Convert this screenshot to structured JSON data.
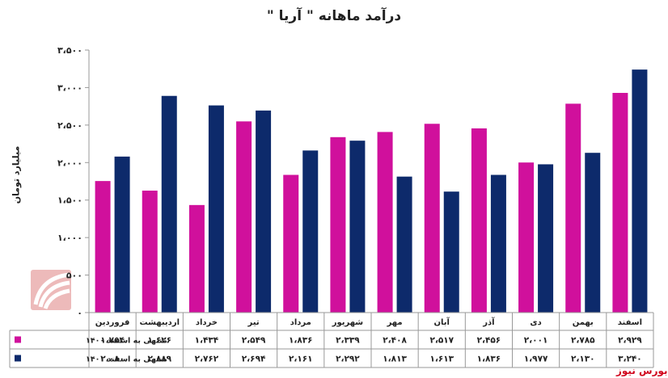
{
  "chart_data": {
    "type": "bar",
    "title": "درآمد ماهانه \" آریا \"",
    "ylabel": "میلیارد تومان",
    "ylim": [
      0,
      3500
    ],
    "yticks": [
      "۰",
      "۵۰۰",
      "۱،۰۰۰",
      "۱،۵۰۰",
      "۲،۰۰۰",
      "۲،۵۰۰",
      "۳،۰۰۰",
      "۳،۵۰۰"
    ],
    "yticks_values": [
      0,
      500,
      1000,
      1500,
      2000,
      2500,
      3000,
      3500
    ],
    "categories": [
      "فروردین",
      "اردیبهشت",
      "خرداد",
      "تیر",
      "مرداد",
      "شهریور",
      "مهر",
      "آبان",
      "آذر",
      "دی",
      "بهمن",
      "اسفند"
    ],
    "series": [
      {
        "name": "منتهی به اسفند ۱۴۰۰",
        "color": "#d0109c",
        "values": [
          1754,
          1626,
          1434,
          2549,
          1836,
          2339,
          2408,
          2517,
          2456,
          2001,
          2785,
          2929
        ],
        "labels": [
          "۱،۷۵۴",
          "۱،۶۲۶",
          "۱،۴۳۴",
          "۲،۵۴۹",
          "۱،۸۳۶",
          "۲،۳۳۹",
          "۲،۴۰۸",
          "۲،۵۱۷",
          "۲،۴۵۶",
          "۲،۰۰۱",
          "۲،۷۸۵",
          "۲،۹۲۹"
        ]
      },
      {
        "name": "منتهی به اسفند ۱۴۰۱",
        "color": "#0d2a6b",
        "values": [
          2080,
          2889,
          2762,
          2694,
          2161,
          2292,
          1813,
          1613,
          1836,
          1977,
          2130,
          3240
        ],
        "labels": [
          "۲،۰۸۰",
          "۲،۸۸۹",
          "۲،۷۶۲",
          "۲،۶۹۴",
          "۲،۱۶۱",
          "۲،۲۹۲",
          "۱،۸۱۳",
          "۱،۶۱۳",
          "۱،۸۳۶",
          "۱،۹۷۷",
          "۲،۱۳۰",
          "۳،۲۴۰"
        ]
      }
    ],
    "grid": false,
    "legend": "data-table-left"
  },
  "brand": "بورس نیوز"
}
